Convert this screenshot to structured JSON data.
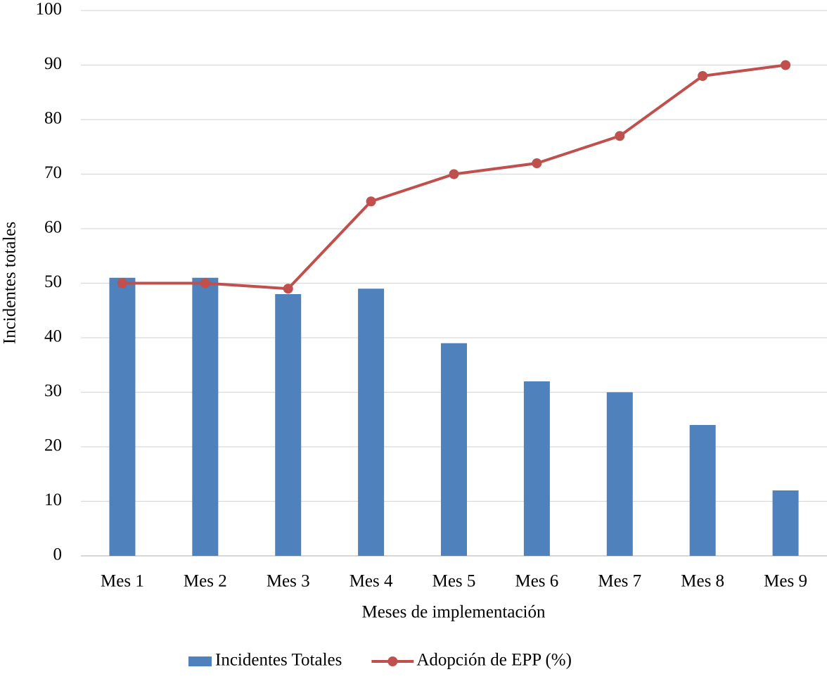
{
  "chart_data": {
    "type": "bar",
    "x_label": "Meses de implementación",
    "y_label": "Incidentes totales",
    "categories": [
      "Mes 1",
      "Mes 2",
      "Mes 3",
      "Mes 4",
      "Mes 5",
      "Mes 6",
      "Mes 7",
      "Mes 8",
      "Mes 9"
    ],
    "series": [
      {
        "name": "Incidentes Totales",
        "type": "bar",
        "color": "#4f81bd",
        "values": [
          51,
          51,
          48,
          49,
          39,
          32,
          30,
          24,
          12
        ]
      },
      {
        "name": "Adopción de EPP (%)",
        "type": "line",
        "color": "#c0504d",
        "values": [
          50,
          50,
          49,
          65,
          70,
          72,
          77,
          88,
          90
        ]
      }
    ],
    "ylim": [
      0,
      100
    ],
    "yticks": [
      0,
      10,
      20,
      30,
      40,
      50,
      60,
      70,
      80,
      90,
      100
    ],
    "grid": true,
    "legend": "bottom"
  }
}
